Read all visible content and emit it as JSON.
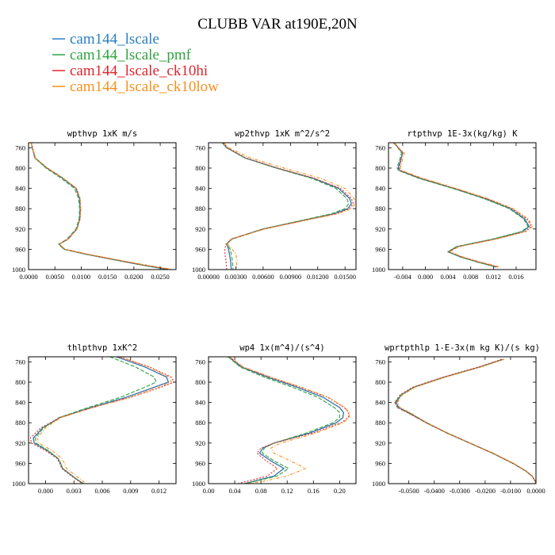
{
  "title": "CLUBB VAR at190E,20N",
  "colors": {
    "cam144_lscale": "#2a7fc0",
    "cam144_lscale_pmf": "#2fa340",
    "cam144_lscale_ck10hi": "#e0262e",
    "cam144_lscale_ck10low": "#f7901e",
    "shadow": "#8b2a3a"
  },
  "legend": [
    {
      "label": "cam144_lscale",
      "color": "#2a7fc0"
    },
    {
      "label": "cam144_lscale_pmf",
      "color": "#2fa340"
    },
    {
      "label": "cam144_lscale_ck10hi",
      "color": "#e0262e"
    },
    {
      "label": "cam144_lscale_ck10low",
      "color": "#f7901e"
    }
  ],
  "chart_data": [
    {
      "type": "line",
      "title": "wpthvp  1xK m/s",
      "xlim": [
        0,
        0.028
      ],
      "xticks": [
        0,
        0.005,
        0.01,
        0.015,
        0.02,
        0.025
      ],
      "xtick_labels": [
        "0.0000",
        "0.0050",
        "0.0100",
        "0.0150",
        "0.0200",
        "0.0250"
      ],
      "ylim": [
        750,
        1000
      ],
      "yticks": [
        760,
        800,
        840,
        880,
        920,
        960,
        1000
      ],
      "ytick_labels": [
        "760",
        "800",
        "840",
        "880",
        "920",
        "960",
        "1000"
      ],
      "y": [
        750,
        780,
        800,
        820,
        840,
        860,
        880,
        900,
        920,
        940,
        950,
        960,
        970,
        980,
        990,
        1000
      ],
      "series": [
        {
          "name": "cam144_lscale",
          "x": [
            0.0005,
            0.0012,
            0.0035,
            0.0065,
            0.009,
            0.0097,
            0.0098,
            0.0097,
            0.0092,
            0.0075,
            0.0058,
            0.0068,
            0.011,
            0.016,
            0.021,
            0.0265
          ]
        },
        {
          "name": "cam144_lscale_pmf",
          "x": [
            0.0005,
            0.0012,
            0.0033,
            0.0062,
            0.0087,
            0.0095,
            0.0097,
            0.0096,
            0.009,
            0.0073,
            0.0057,
            0.0067,
            0.011,
            0.016,
            0.021,
            0.0265
          ]
        },
        {
          "name": "cam144_lscale_ck10hi",
          "x": [
            0.0005,
            0.0013,
            0.0036,
            0.0066,
            0.0091,
            0.0098,
            0.0099,
            0.0098,
            0.0092,
            0.0075,
            0.0058,
            0.0069,
            0.0112,
            0.0162,
            0.0213,
            0.027
          ]
        },
        {
          "name": "cam144_lscale_ck10low",
          "x": [
            0.0005,
            0.0013,
            0.0036,
            0.0066,
            0.0091,
            0.0098,
            0.0099,
            0.0098,
            0.0092,
            0.0075,
            0.0058,
            0.007,
            0.0115,
            0.0165,
            0.0218,
            0.0275
          ]
        }
      ]
    },
    {
      "type": "line",
      "title": "wp2thvp  1xK m^2/s^2",
      "xlim": [
        0,
        0.0162
      ],
      "xticks": [
        0,
        0.003,
        0.006,
        0.009,
        0.012,
        0.015
      ],
      "xtick_labels": [
        "0.00000",
        "0.00300",
        "0.00600",
        "0.00900",
        "0.01200",
        "0.01500"
      ],
      "ylim": [
        750,
        1000
      ],
      "yticks": [
        760,
        800,
        840,
        880,
        920,
        960,
        1000
      ],
      "ytick_labels": [
        "760",
        "800",
        "840",
        "880",
        "920",
        "960",
        "1000"
      ],
      "y": [
        750,
        760,
        780,
        800,
        820,
        840,
        860,
        870,
        880,
        890,
        900,
        920,
        940,
        950,
        960,
        970,
        980,
        1000
      ],
      "series": [
        {
          "name": "cam144_lscale",
          "x": [
            0.0015,
            0.002,
            0.004,
            0.0075,
            0.0115,
            0.0143,
            0.0155,
            0.0157,
            0.0153,
            0.0138,
            0.0112,
            0.006,
            0.0025,
            0.002,
            0.0022,
            0.0023,
            0.0024,
            0.0025
          ]
        },
        {
          "name": "cam144_lscale_pmf",
          "x": [
            0.0015,
            0.002,
            0.004,
            0.0074,
            0.0113,
            0.014,
            0.0152,
            0.0154,
            0.015,
            0.0135,
            0.011,
            0.006,
            0.0026,
            0.002,
            0.0024,
            0.0025,
            0.0026,
            0.0027
          ]
        },
        {
          "name": "cam144_lscale_ck10hi",
          "x": [
            0.0016,
            0.0021,
            0.0041,
            0.0076,
            0.0116,
            0.0145,
            0.0157,
            0.0159,
            0.0155,
            0.014,
            0.0113,
            0.0061,
            0.0025,
            0.0019,
            0.0018,
            0.0018,
            0.0019,
            0.002
          ]
        },
        {
          "name": "cam144_lscale_ck10low",
          "x": [
            0.0017,
            0.0022,
            0.0046,
            0.0083,
            0.0123,
            0.015,
            0.016,
            0.0161,
            0.0157,
            0.0142,
            0.0115,
            0.0062,
            0.0025,
            0.0021,
            0.0026,
            0.003,
            0.0031,
            0.0031
          ]
        }
      ]
    },
    {
      "type": "line",
      "title": "rtpthvp  1E-3x(kg/kg) K",
      "xlim": [
        -0.0065,
        0.0195
      ],
      "xticks": [
        -0.004,
        0,
        0.004,
        0.008,
        0.012,
        0.016
      ],
      "xtick_labels": [
        "-0.004",
        "0.000",
        "0.004",
        "0.008",
        "0.012",
        "0.016"
      ],
      "ylim": [
        750,
        1000
      ],
      "yticks": [
        760,
        800,
        840,
        880,
        920,
        960,
        1000
      ],
      "ytick_labels": [
        "760",
        "800",
        "840",
        "880",
        "920",
        "960",
        "1000"
      ],
      "y": [
        750,
        770,
        790,
        800,
        805,
        820,
        840,
        860,
        880,
        900,
        915,
        925,
        940,
        955,
        965,
        975,
        985,
        995
      ],
      "series": [
        {
          "name": "cam144_lscale",
          "x": [
            -0.0055,
            -0.004,
            -0.0045,
            -0.0048,
            -0.0045,
            -0.001,
            0.005,
            0.0105,
            0.015,
            0.0175,
            0.0183,
            0.0172,
            0.012,
            0.0055,
            0.004,
            0.0062,
            0.0092,
            0.0125
          ]
        },
        {
          "name": "cam144_lscale_pmf",
          "x": [
            -0.0055,
            -0.0042,
            -0.0047,
            -0.005,
            -0.0047,
            -0.0012,
            0.0048,
            0.0103,
            0.0148,
            0.0173,
            0.0181,
            0.017,
            0.0118,
            0.0054,
            0.004,
            0.0061,
            0.0091,
            0.0125
          ]
        },
        {
          "name": "cam144_lscale_ck10hi",
          "x": [
            -0.0056,
            -0.004,
            -0.0044,
            -0.0046,
            -0.0044,
            -0.0008,
            0.0052,
            0.0108,
            0.0153,
            0.0179,
            0.0187,
            0.0176,
            0.0123,
            0.0057,
            0.0042,
            0.0064,
            0.0094,
            0.0128
          ]
        },
        {
          "name": "cam144_lscale_ck10low",
          "x": [
            -0.0057,
            -0.0037,
            -0.0042,
            -0.0044,
            -0.0041,
            -0.0005,
            0.0054,
            0.011,
            0.0155,
            0.0181,
            0.0189,
            0.0178,
            0.0125,
            0.0059,
            0.0043,
            0.0066,
            0.0097,
            0.0132
          ]
        }
      ]
    },
    {
      "type": "line",
      "title": "thlpthvp  1xK^2",
      "xlim": [
        -0.0018,
        0.0138
      ],
      "xticks": [
        0,
        0.003,
        0.006,
        0.009,
        0.012
      ],
      "xtick_labels": [
        "0.000",
        "0.003",
        "0.006",
        "0.009",
        "0.012"
      ],
      "ylim": [
        750,
        1000
      ],
      "yticks": [
        760,
        800,
        840,
        880,
        920,
        960,
        1000
      ],
      "ytick_labels": [
        "760",
        "800",
        "840",
        "880",
        "920",
        "960",
        "1000"
      ],
      "y": [
        750,
        770,
        790,
        800,
        810,
        830,
        850,
        870,
        890,
        910,
        920,
        935,
        950,
        960,
        970,
        980,
        990,
        1000
      ],
      "series": [
        {
          "name": "cam144_lscale",
          "x": [
            0.0075,
            0.0105,
            0.0128,
            0.013,
            0.0115,
            0.0085,
            0.0048,
            0.0015,
            -0.0003,
            -0.0013,
            -0.0012,
            0.0002,
            0.0013,
            0.0016,
            0.0018,
            0.0025,
            0.0032,
            0.004
          ]
        },
        {
          "name": "cam144_lscale_pmf",
          "x": [
            0.0068,
            0.0095,
            0.0115,
            0.0117,
            0.0105,
            0.0079,
            0.0045,
            0.0014,
            -0.0002,
            -0.0011,
            -0.001,
            0.0003,
            0.0013,
            0.0016,
            0.0018,
            0.0025,
            0.0032,
            0.004
          ]
        },
        {
          "name": "cam144_lscale_ck10hi",
          "x": [
            0.0079,
            0.011,
            0.0133,
            0.0136,
            0.0122,
            0.009,
            0.005,
            0.0015,
            -0.0005,
            -0.0016,
            -0.0015,
            0.0,
            0.0012,
            0.0015,
            0.0017,
            0.0024,
            0.0031,
            0.0039
          ]
        },
        {
          "name": "cam144_lscale_ck10low",
          "x": [
            0.0078,
            0.0109,
            0.0131,
            0.0133,
            0.012,
            0.0089,
            0.005,
            0.0016,
            0.0,
            -0.0009,
            -0.0007,
            0.0007,
            0.0017,
            0.002,
            0.0022,
            0.0029,
            0.0036,
            0.0043
          ]
        }
      ]
    },
    {
      "type": "line",
      "title": "wp4  1x(m^4)/(s^4)",
      "xlim": [
        0,
        0.225
      ],
      "xticks": [
        0,
        0.04,
        0.08,
        0.12,
        0.16,
        0.2
      ],
      "xtick_labels": [
        "0.00",
        "0.04",
        "0.08",
        "0.12",
        "0.16",
        "0.20"
      ],
      "ylim": [
        750,
        1000
      ],
      "yticks": [
        760,
        800,
        840,
        880,
        920,
        960,
        1000
      ],
      "ytick_labels": [
        "760",
        "800",
        "840",
        "880",
        "920",
        "960",
        "1000"
      ],
      "y": [
        750,
        770,
        790,
        810,
        830,
        850,
        860,
        870,
        880,
        900,
        920,
        930,
        940,
        955,
        970,
        985,
        995,
        1000
      ],
      "series": [
        {
          "name": "cam144_lscale",
          "x": [
            0.03,
            0.05,
            0.09,
            0.135,
            0.175,
            0.2,
            0.206,
            0.205,
            0.195,
            0.155,
            0.1,
            0.083,
            0.078,
            0.095,
            0.115,
            0.1,
            0.07,
            0.055
          ]
        },
        {
          "name": "cam144_lscale_pmf",
          "x": [
            0.03,
            0.048,
            0.085,
            0.128,
            0.167,
            0.192,
            0.2,
            0.2,
            0.19,
            0.15,
            0.1,
            0.085,
            0.082,
            0.1,
            0.122,
            0.105,
            0.072,
            0.056
          ]
        },
        {
          "name": "cam144_lscale_ck10hi",
          "x": [
            0.032,
            0.052,
            0.093,
            0.14,
            0.182,
            0.207,
            0.214,
            0.213,
            0.202,
            0.16,
            0.1,
            0.08,
            0.074,
            0.088,
            0.105,
            0.09,
            0.06,
            0.045
          ]
        },
        {
          "name": "cam144_lscale_ck10low",
          "x": [
            0.032,
            0.053,
            0.095,
            0.142,
            0.183,
            0.208,
            0.215,
            0.215,
            0.205,
            0.165,
            0.11,
            0.095,
            0.1,
            0.125,
            0.148,
            0.12,
            0.085,
            0.06
          ]
        }
      ]
    },
    {
      "type": "line",
      "title": "wprtpthlp  1-E-3x(m kg K)/(s kg)",
      "xlim": [
        -0.058,
        0.0
      ],
      "xticks": [
        -0.05,
        -0.04,
        -0.03,
        -0.02,
        -0.01,
        0
      ],
      "xtick_labels": [
        "-0.0500",
        "-0.0400",
        "-0.0300",
        "-0.0200",
        "-0.0100",
        "0.0000"
      ],
      "ylim": [
        750,
        1000
      ],
      "yticks": [
        760,
        800,
        840,
        880,
        920,
        960,
        1000
      ],
      "ytick_labels": [
        "760",
        "800",
        "840",
        "880",
        "920",
        "960",
        "1000"
      ],
      "y": [
        755,
        770,
        790,
        810,
        825,
        840,
        850,
        860,
        880,
        900,
        920,
        940,
        960,
        975,
        985,
        995,
        1000
      ],
      "series": [
        {
          "name": "cam144_lscale",
          "x": [
            -0.013,
            -0.022,
            -0.036,
            -0.048,
            -0.053,
            -0.055,
            -0.054,
            -0.05,
            -0.043,
            -0.035,
            -0.026,
            -0.017,
            -0.009,
            -0.004,
            -0.0015,
            -0.0003,
            -0.0001
          ]
        },
        {
          "name": "cam144_lscale_pmf",
          "x": [
            -0.013,
            -0.022,
            -0.036,
            -0.048,
            -0.053,
            -0.0555,
            -0.0545,
            -0.0505,
            -0.0433,
            -0.0352,
            -0.0262,
            -0.0172,
            -0.0092,
            -0.0041,
            -0.0016,
            -0.0003,
            -0.0001
          ]
        },
        {
          "name": "cam144_lscale_ck10hi",
          "x": [
            -0.0135,
            -0.0225,
            -0.0365,
            -0.0485,
            -0.0535,
            -0.0555,
            -0.0545,
            -0.0505,
            -0.0432,
            -0.0351,
            -0.0261,
            -0.0171,
            -0.0091,
            -0.0041,
            -0.0016,
            -0.0003,
            -0.0001
          ]
        },
        {
          "name": "cam144_lscale_ck10low",
          "x": [
            -0.0125,
            -0.0215,
            -0.0355,
            -0.0475,
            -0.0525,
            -0.0545,
            -0.0535,
            -0.0495,
            -0.0428,
            -0.0348,
            -0.0258,
            -0.0168,
            -0.0088,
            -0.0038,
            -0.0014,
            -0.0003,
            -0.0001
          ]
        }
      ]
    }
  ]
}
